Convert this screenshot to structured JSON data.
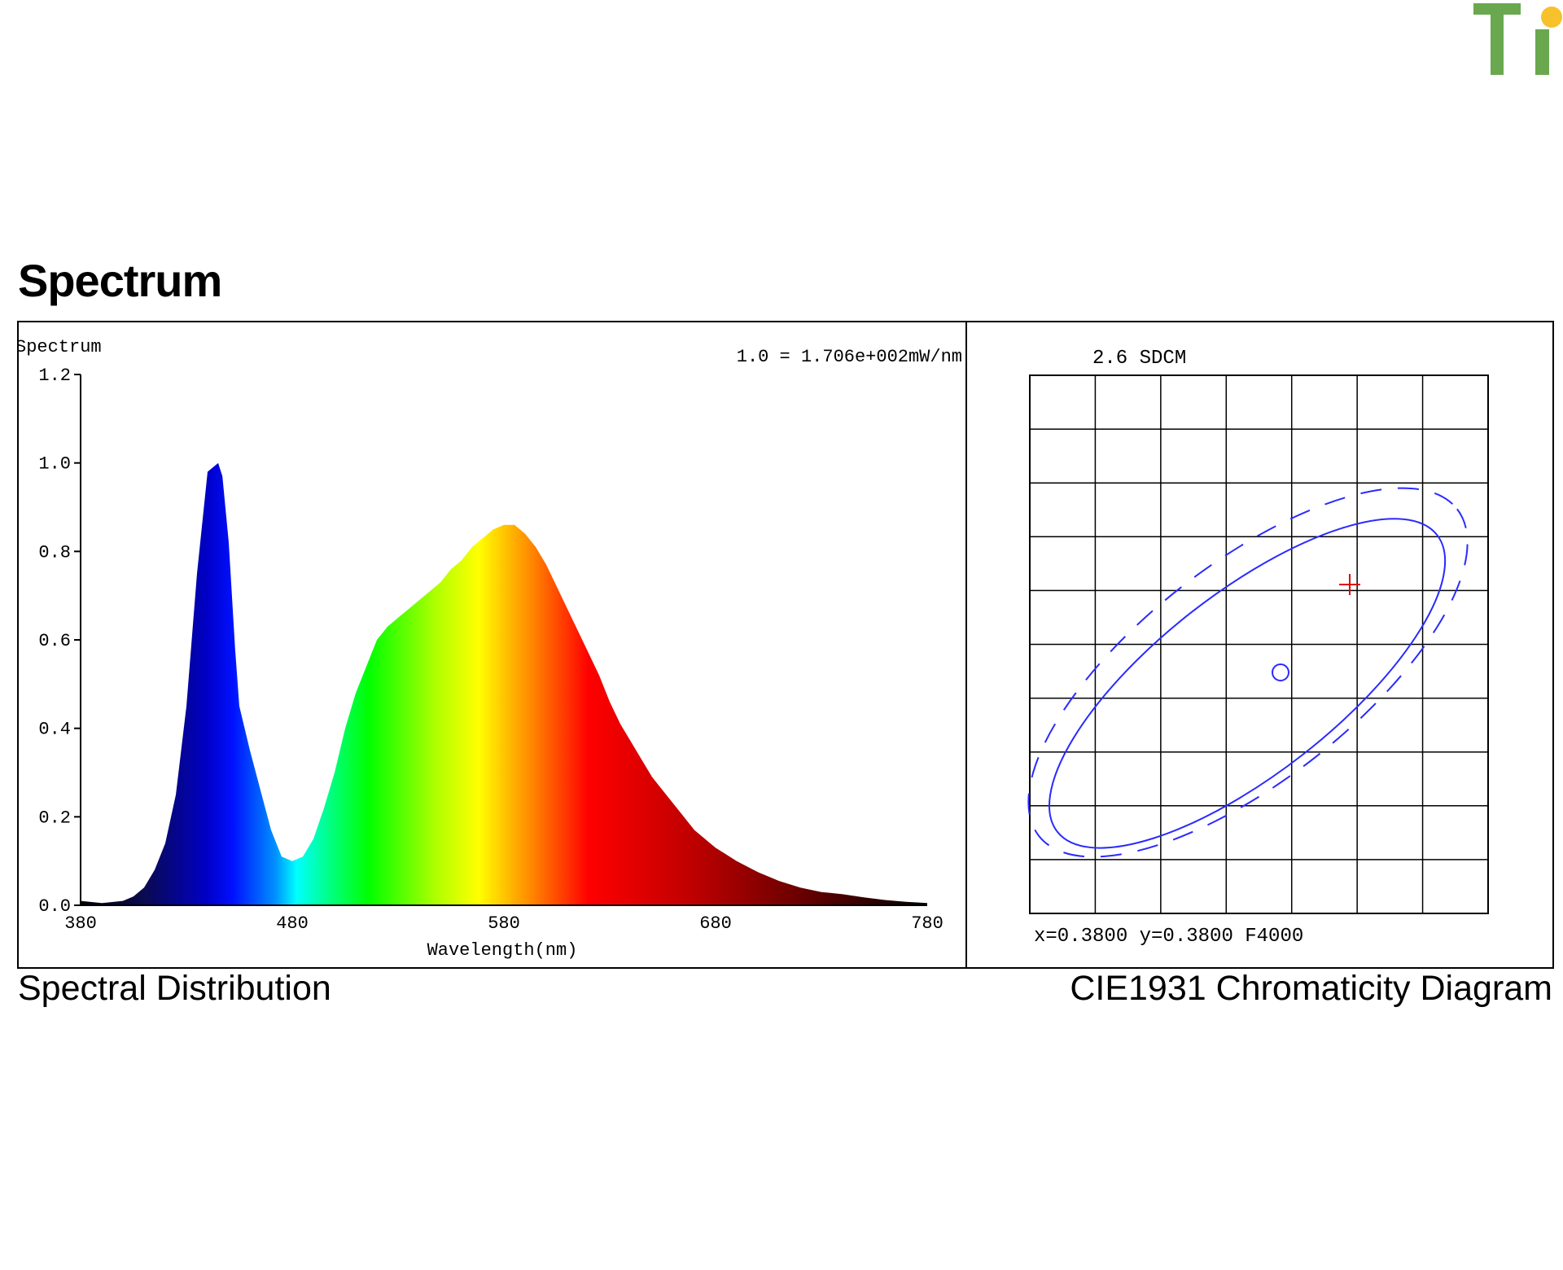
{
  "logo": {
    "text": "Ti",
    "colors": {
      "letters": "#6aa84f",
      "dot": "#f6c12b"
    }
  },
  "section_title": "Spectrum",
  "captions": {
    "left": "Spectral Distribution",
    "right": "CIE1931 Chromaticity Diagram"
  },
  "chart_data": [
    {
      "type": "area",
      "title": "Spectrum",
      "scale_note": "1.0 = 1.706e+002mW/nm",
      "xlabel": "Wavelength(nm)",
      "ylabel": "",
      "xlim": [
        380,
        780
      ],
      "ylim": [
        0,
        1.2
      ],
      "x_ticks": [
        "380",
        "480",
        "580",
        "680",
        "780"
      ],
      "y_ticks": [
        "0.0",
        "0.2",
        "0.4",
        "0.6",
        "0.8",
        "1.0",
        "1.2"
      ],
      "fill": "spectral-rainbow",
      "series": [
        {
          "x": [
            380,
            390,
            400,
            405,
            410,
            415,
            420,
            425,
            430,
            435,
            440,
            445,
            447,
            450,
            453,
            455,
            460,
            465,
            470,
            475,
            480,
            485,
            490,
            495,
            500,
            505,
            510,
            515,
            520,
            525,
            530,
            535,
            540,
            545,
            550,
            555,
            560,
            565,
            570,
            575,
            580,
            585,
            590,
            595,
            600,
            605,
            610,
            615,
            620,
            625,
            630,
            635,
            640,
            645,
            650,
            655,
            660,
            665,
            670,
            675,
            680,
            690,
            700,
            710,
            720,
            730,
            740,
            750,
            760,
            770,
            780
          ],
          "y": [
            0.01,
            0.005,
            0.01,
            0.02,
            0.04,
            0.08,
            0.14,
            0.25,
            0.45,
            0.75,
            0.98,
            1.0,
            0.97,
            0.82,
            0.58,
            0.45,
            0.35,
            0.26,
            0.17,
            0.11,
            0.1,
            0.11,
            0.15,
            0.22,
            0.3,
            0.4,
            0.48,
            0.54,
            0.6,
            0.63,
            0.65,
            0.67,
            0.69,
            0.71,
            0.73,
            0.76,
            0.78,
            0.81,
            0.83,
            0.85,
            0.86,
            0.86,
            0.84,
            0.81,
            0.77,
            0.72,
            0.67,
            0.62,
            0.57,
            0.52,
            0.46,
            0.41,
            0.37,
            0.33,
            0.29,
            0.26,
            0.23,
            0.2,
            0.17,
            0.15,
            0.13,
            0.1,
            0.075,
            0.055,
            0.04,
            0.03,
            0.025,
            0.018,
            0.012,
            0.008,
            0.005
          ]
        }
      ]
    },
    {
      "type": "scatter",
      "title": "2.6 SDCM",
      "readout": "x=0.3800 y=0.3800 F4000",
      "grid": true,
      "measured_point": {
        "symbol": "+",
        "color": "#e00000"
      },
      "target_point": {
        "symbol": "o",
        "color": "#2a2aff"
      },
      "ellipses": [
        {
          "style": "solid",
          "color": "#2a2aff"
        },
        {
          "style": "dashed",
          "color": "#2a2aff"
        }
      ]
    }
  ]
}
